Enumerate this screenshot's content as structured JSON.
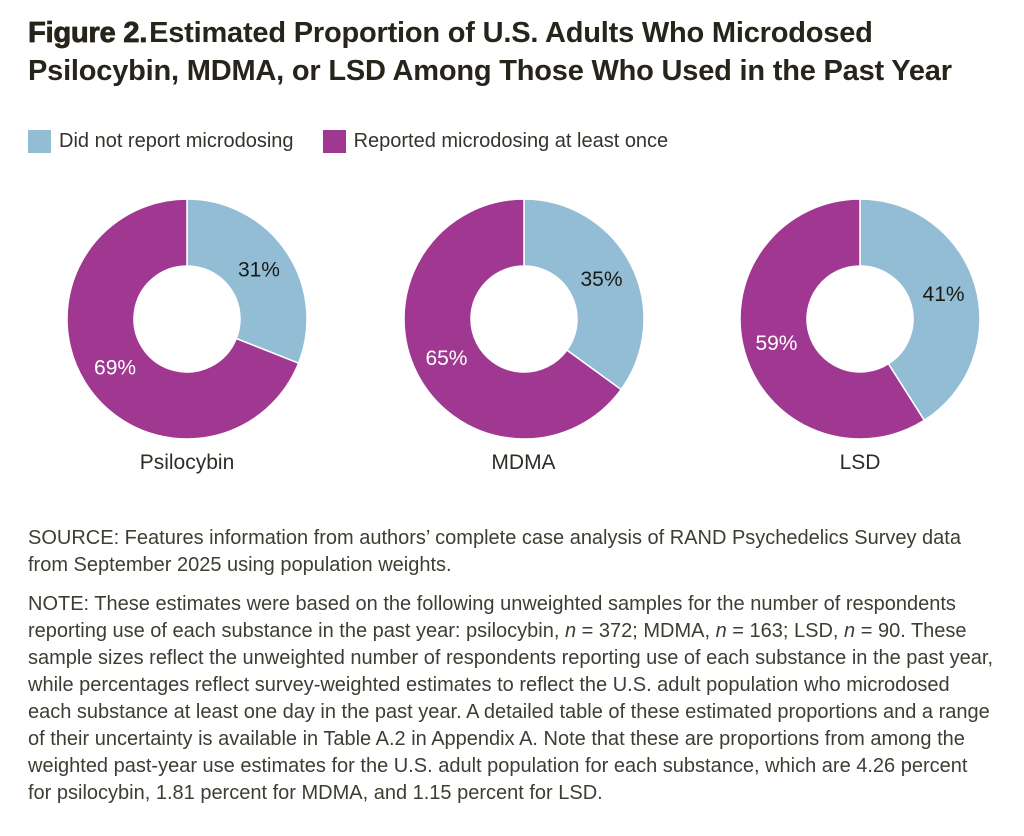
{
  "figure": {
    "label": "Figure 2.",
    "title": "Estimated Proportion of U.S. Adults Who Microdosed Psilocybin, MDMA, or LSD Among Those Who Used in the Past Year"
  },
  "chart_data": {
    "type": "pie",
    "subtype": "donut",
    "direction": "clockwise",
    "start_angle": "top",
    "legend_position": "top-left",
    "legend": [
      {
        "label": "Did not report microdosing",
        "color": "#92bdd5"
      },
      {
        "label": "Reported microdosing at least once",
        "color": "#a03791"
      }
    ],
    "slice_label_colors": [
      "#1a1a14",
      "#ffffff"
    ],
    "charts": [
      {
        "category": "Psilocybin",
        "slices": [
          {
            "series": "Did not report microdosing",
            "value": 31,
            "label": "31%"
          },
          {
            "series": "Reported microdosing at least once",
            "value": 69,
            "label": "69%"
          }
        ]
      },
      {
        "category": "MDMA",
        "slices": [
          {
            "series": "Did not report microdosing",
            "value": 35,
            "label": "35%"
          },
          {
            "series": "Reported microdosing at least once",
            "value": 65,
            "label": "65%"
          }
        ]
      },
      {
        "category": "LSD",
        "slices": [
          {
            "series": "Did not report microdosing",
            "value": 41,
            "label": "41%"
          },
          {
            "series": "Reported microdosing at least once",
            "value": 59,
            "label": "59%"
          }
        ]
      }
    ]
  },
  "source": {
    "text": "SOURCE: Features information from authors’ complete case analysis of RAND Psychedelics Survey data from September 2025 using population weights."
  },
  "note": {
    "segments": [
      {
        "text": "NOTE: These estimates were based on the following unweighted samples for the number of respondents reporting use of each substance in the past year: psilocybin, ",
        "italic": false
      },
      {
        "text": "n",
        "italic": true
      },
      {
        "text": " = 372; MDMA, ",
        "italic": false
      },
      {
        "text": "n",
        "italic": true
      },
      {
        "text": " = 163; LSD, ",
        "italic": false
      },
      {
        "text": "n",
        "italic": true
      },
      {
        "text": " = 90. These sample sizes reflect the unweighted number of respondents reporting use of each substance in the past year, while percentages reflect survey-weighted estimates to reflect the U.S. adult population who microdosed each substance at least one day in the past year. A detailed table of these estimated proportions and a range of their uncertainty is available in Table A.2 in Appendix A. Note that these are proportions from among the weighted past-year use estimates for the U.S. adult population for each substance, which are 4.26 percent for psilocybin, 1.81 percent for MDMA, and 1.15 percent for LSD.",
        "italic": false
      }
    ]
  }
}
